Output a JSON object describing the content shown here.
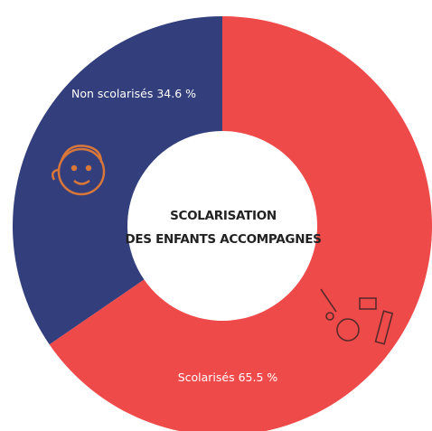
{
  "chart_data": {
    "type": "pie",
    "title": [
      "SCOLARISATION",
      "DES ENFANTS ACCOMPAGNES"
    ],
    "categories": [
      "Scolarisés",
      "Non scolarisés"
    ],
    "values": [
      65.5,
      34.6
    ],
    "value_labels": [
      "65.5 %",
      "34.6 %"
    ],
    "colors": [
      "#ef4a4a",
      "#333e7c"
    ]
  }
}
